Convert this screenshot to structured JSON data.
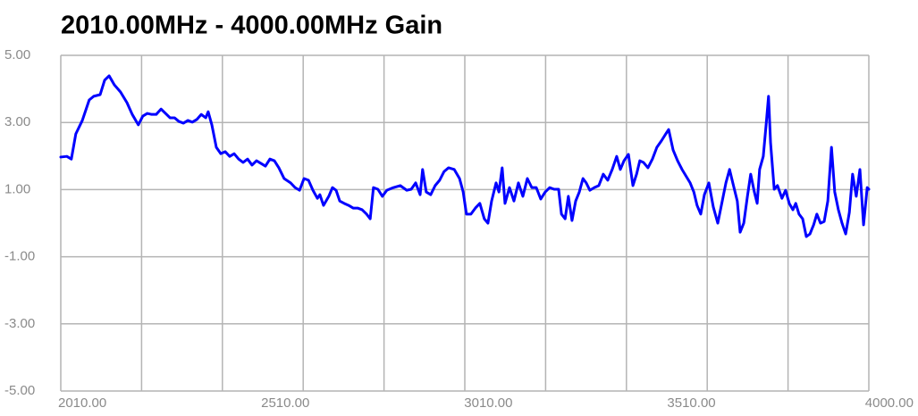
{
  "chart_data": {
    "type": "line",
    "title": "2010.00MHz - 4000.00MHz Gain",
    "xlim": [
      2010,
      4000
    ],
    "xticks": [
      {
        "value": 2010,
        "label": "2010.00"
      },
      {
        "value": 2510,
        "label": "2510.00"
      },
      {
        "value": 3010,
        "label": "3010.00"
      },
      {
        "value": 3510,
        "label": "3510.00"
      },
      {
        "value": 4000,
        "label": "4000.00"
      }
    ],
    "xgrid": [
      2010,
      2209,
      2408,
      2607,
      2806,
      3005,
      3204,
      3403,
      3602,
      3801,
      4000
    ],
    "ylim": [
      -5,
      5
    ],
    "yticks": [
      {
        "value": 5,
        "label": "5.00"
      },
      {
        "value": 3,
        "label": "3.00"
      },
      {
        "value": 1,
        "label": "1.00"
      },
      {
        "value": -1,
        "label": "-1.00"
      },
      {
        "value": -3,
        "label": "-3.00"
      },
      {
        "value": -5,
        "label": "-5.00"
      }
    ],
    "grid": true,
    "series": [
      {
        "color": "#0000ff",
        "x": [
          2010,
          2025,
          2036,
          2047,
          2063,
          2080,
          2091,
          2107,
          2118,
          2129,
          2142,
          2157,
          2173,
          2186,
          2201,
          2212,
          2223,
          2234,
          2245,
          2257,
          2268,
          2279,
          2290,
          2301,
          2312,
          2323,
          2334,
          2345,
          2356,
          2367,
          2373,
          2382,
          2393,
          2404,
          2415,
          2426,
          2437,
          2448,
          2459,
          2470,
          2481,
          2492,
          2503,
          2514,
          2525,
          2536,
          2547,
          2560,
          2576,
          2587,
          2598,
          2609,
          2620,
          2631,
          2642,
          2648,
          2657,
          2670,
          2679,
          2688,
          2697,
          2708,
          2719,
          2730,
          2741,
          2752,
          2763,
          2772,
          2780,
          2791,
          2802,
          2813,
          2829,
          2846,
          2862,
          2873,
          2884,
          2895,
          2901,
          2910,
          2921,
          2932,
          2943,
          2954,
          2965,
          2979,
          2992,
          3001,
          3009,
          3020,
          3031,
          3042,
          3053,
          3062,
          3071,
          3082,
          3089,
          3097,
          3104,
          3115,
          3126,
          3137,
          3148,
          3159,
          3170,
          3181,
          3192,
          3203,
          3214,
          3225,
          3236,
          3243,
          3252,
          3260,
          3269,
          3278,
          3287,
          3296,
          3304,
          3313,
          3324,
          3335,
          3346,
          3357,
          3368,
          3379,
          3388,
          3397,
          3408,
          3419,
          3428,
          3436,
          3445,
          3456,
          3467,
          3478,
          3489,
          3500,
          3507,
          3518,
          3529,
          3540,
          3551,
          3560,
          3569,
          3577,
          3586,
          3595,
          3606,
          3617,
          3628,
          3639,
          3648,
          3657,
          3665,
          3676,
          3683,
          3692,
          3701,
          3709,
          3718,
          3725,
          3731,
          3740,
          3747,
          3753,
          3758,
          3767,
          3775,
          3786,
          3795,
          3804,
          3813,
          3820,
          3828,
          3837,
          3846,
          3855,
          3864,
          3872,
          3881,
          3890,
          3899,
          3908,
          3916,
          3925,
          3934,
          3943,
          3952,
          3960,
          3969,
          3978,
          3987,
          3996,
          4000
        ],
        "values": [
          1.97,
          1.99,
          1.91,
          2.66,
          3.06,
          3.67,
          3.78,
          3.83,
          4.26,
          4.39,
          4.12,
          3.91,
          3.59,
          3.24,
          2.93,
          3.19,
          3.27,
          3.24,
          3.24,
          3.4,
          3.27,
          3.14,
          3.14,
          3.03,
          2.98,
          3.06,
          3.01,
          3.09,
          3.24,
          3.14,
          3.32,
          2.93,
          2.26,
          2.07,
          2.13,
          1.99,
          2.07,
          1.91,
          1.81,
          1.91,
          1.73,
          1.86,
          1.78,
          1.7,
          1.91,
          1.86,
          1.65,
          1.33,
          1.2,
          1.06,
          0.98,
          1.33,
          1.28,
          0.98,
          0.74,
          0.85,
          0.53,
          0.8,
          1.06,
          0.98,
          0.66,
          0.59,
          0.53,
          0.45,
          0.45,
          0.4,
          0.27,
          0.13,
          1.06,
          1.01,
          0.8,
          0.98,
          1.06,
          1.12,
          0.98,
          1.01,
          1.2,
          0.85,
          1.6,
          0.93,
          0.85,
          1.12,
          1.28,
          1.54,
          1.65,
          1.6,
          1.33,
          0.93,
          0.27,
          0.27,
          0.45,
          0.59,
          0.13,
          0,
          0.66,
          1.2,
          0.93,
          1.65,
          0.59,
          1.06,
          0.66,
          1.2,
          0.8,
          1.33,
          1.06,
          1.06,
          0.72,
          0.93,
          1.06,
          1.01,
          1.01,
          0.27,
          0.13,
          0.8,
          0.08,
          0.66,
          0.93,
          1.33,
          1.2,
          0.98,
          1.06,
          1.12,
          1.46,
          1.28,
          1.6,
          1.99,
          1.6,
          1.86,
          2.05,
          1.12,
          1.46,
          1.86,
          1.81,
          1.65,
          1.91,
          2.26,
          2.45,
          2.66,
          2.79,
          2.18,
          1.86,
          1.6,
          1.38,
          1.2,
          0.93,
          0.53,
          0.27,
          0.85,
          1.2,
          0.48,
          0,
          0.66,
          1.2,
          1.6,
          1.2,
          0.66,
          -0.27,
          0,
          0.8,
          1.46,
          0.93,
          0.59,
          1.6,
          1.99,
          2.93,
          3.78,
          2.39,
          1.01,
          1.12,
          0.74,
          0.98,
          0.59,
          0.4,
          0.59,
          0.27,
          0.13,
          -0.4,
          -0.32,
          -0.05,
          0.27,
          0,
          0.05,
          0.66,
          2.26,
          0.93,
          0.4,
          0,
          -0.32,
          0.32,
          1.46,
          0.8,
          1.6,
          -0.05,
          1.06,
          1.01
        ]
      }
    ]
  }
}
